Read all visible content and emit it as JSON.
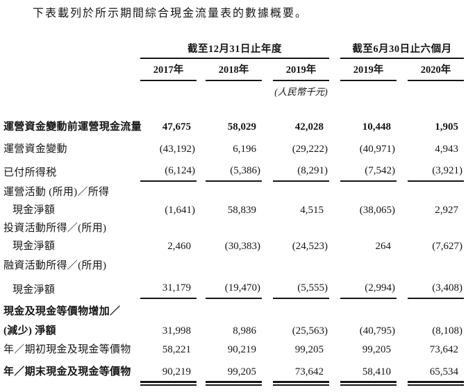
{
  "colors": {
    "ink": "#151515",
    "background": "#ffffff"
  },
  "intro": "下表載列於所示期間綜合現金流量表的數據概要。",
  "table": {
    "column_groups": [
      {
        "label": "截至12月31日止年度",
        "span": 3
      },
      {
        "label": "截至6月30日止六個月",
        "span": 2
      }
    ],
    "columns": [
      "2017年",
      "2018年",
      "2019年",
      "2019年",
      "2020年"
    ],
    "unit_note": "(人民幣千元)",
    "rows": [
      {
        "label": "運營資金變動前運營現金流量",
        "bold": true,
        "values_bold": true,
        "values": [
          "47,675",
          "58,029",
          "42,028",
          "10,448",
          "1,905"
        ]
      },
      {
        "label": "運營資金變動",
        "values": [
          "(43,192)",
          "6,196",
          "(29,222)",
          "(40,971)",
          "4,943"
        ]
      },
      {
        "label": "已付所得税",
        "rule_below": true,
        "values": [
          "(6,124)",
          "(5,386)",
          "(8,291)",
          "(7,542)",
          "(3,921)"
        ]
      },
      {
        "label": "運營活動 (所用)／所得",
        "values": []
      },
      {
        "label": "現金淨額",
        "indent": true,
        "values": [
          "(1,641)",
          "58,839",
          "4,515",
          "(38,065)",
          "2,927"
        ]
      },
      {
        "label": "投資活動所得／(所用)",
        "values": []
      },
      {
        "label": "現金淨額",
        "indent": true,
        "values": [
          "2,460",
          "(30,383)",
          "(24,523)",
          "264",
          "(7,627)"
        ]
      },
      {
        "label": "融資活動所得／(所用)",
        "values": []
      },
      {
        "label": "現金淨額",
        "indent": true,
        "rule_below": true,
        "values": [
          "31,179",
          "(19,470)",
          "(5,555)",
          "(2,994)",
          "(3,408)"
        ]
      },
      {
        "label": "現金及現金等價物增加／",
        "bold": true,
        "values": []
      },
      {
        "label": "(減少) 淨額",
        "bold": true,
        "values": [
          "31,998",
          "8,986",
          "(25,563)",
          "(40,795)",
          "(8,108)"
        ]
      },
      {
        "label": "年／期初現金及現金等價物",
        "values": [
          "58,221",
          "90,219",
          "99,205",
          "99,205",
          "73,642"
        ]
      },
      {
        "label": "年／期末現金及現金等價物",
        "bold": true,
        "double_rule_below": true,
        "values": [
          "90,219",
          "99,205",
          "73,642",
          "58,410",
          "65,534"
        ]
      }
    ]
  }
}
